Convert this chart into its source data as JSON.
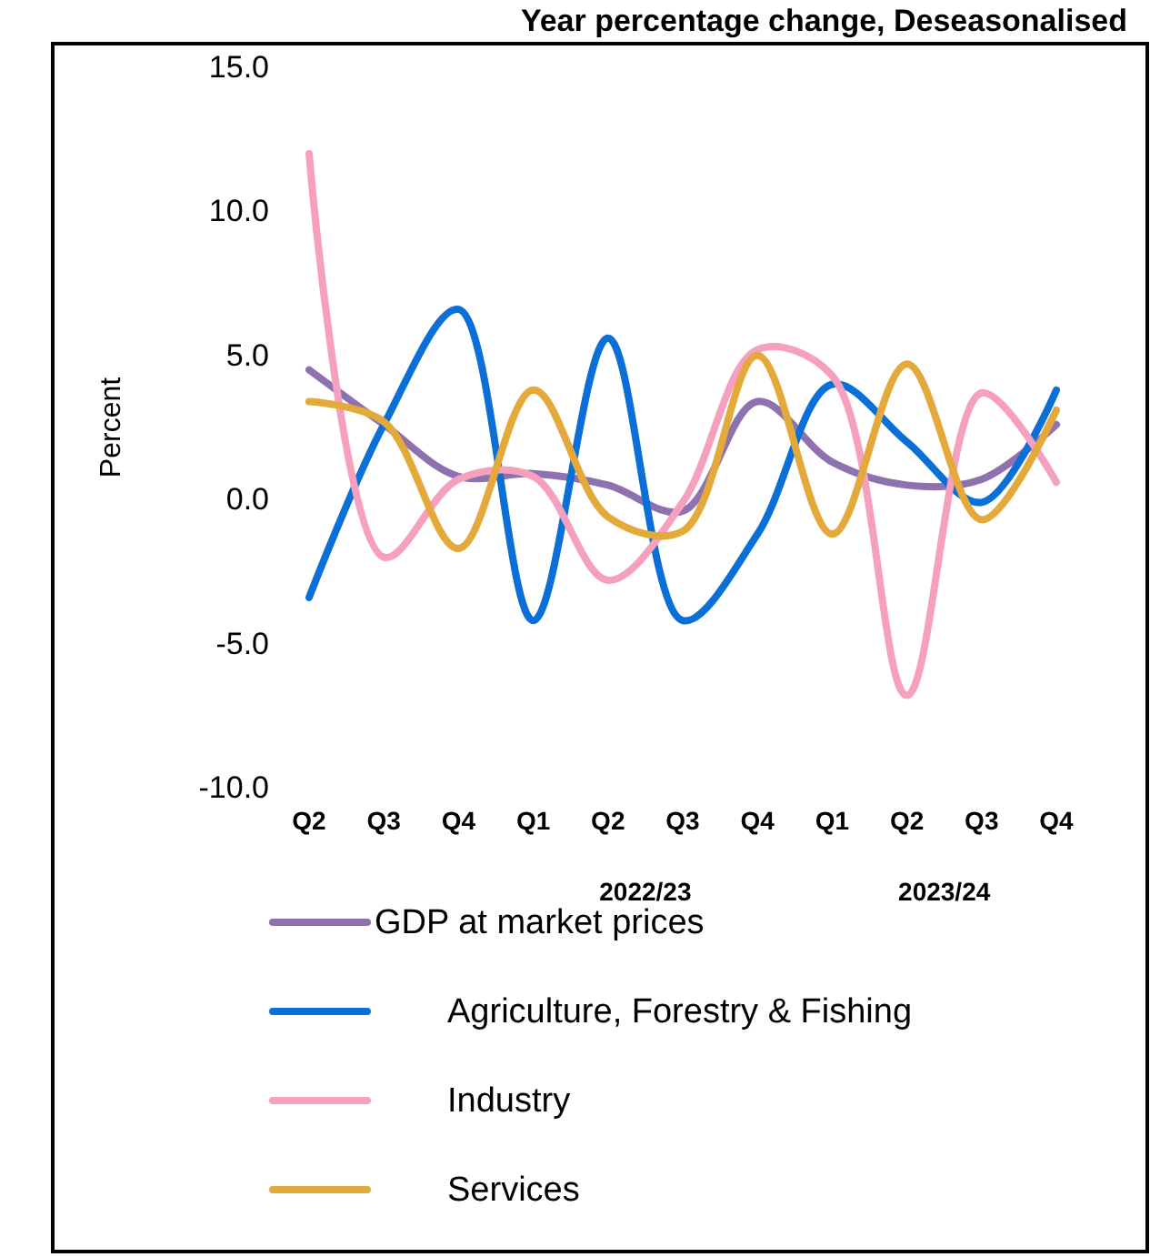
{
  "chart_data": {
    "type": "line",
    "title": "Year percentage change, Deseasonalised",
    "ylabel": "Percent",
    "categories": [
      "Q2",
      "Q3",
      "Q4",
      "Q1",
      "Q2",
      "Q3",
      "Q4",
      "Q1",
      "Q2",
      "Q3",
      "Q4"
    ],
    "annotations": [
      "2022/23",
      "2023/24"
    ],
    "ylim": [
      -10,
      15
    ],
    "yticks": [
      {
        "value": -10,
        "label": "-10.0"
      },
      {
        "value": -5,
        "label": "-5.0"
      },
      {
        "value": 0,
        "label": "0.0"
      },
      {
        "value": 5,
        "label": "5.0"
      },
      {
        "value": 10,
        "label": "10.0"
      },
      {
        "value": 15,
        "label": "15.0"
      }
    ],
    "grid": false,
    "legend": "bottom",
    "marker": "none",
    "line_style": "solid",
    "series": [
      {
        "name": "GDP at market prices",
        "color": "#8e72b0",
        "values": [
          4.5,
          2.6,
          0.8,
          0.9,
          0.5,
          -0.4,
          3.4,
          1.3,
          0.5,
          0.7,
          2.6
        ]
      },
      {
        "name": "Agriculture, Forestry & Fishing",
        "color": "#0a6fd6",
        "values": [
          -3.4,
          2.6,
          6.6,
          -4.2,
          5.6,
          -4.2,
          -1.2,
          4.0,
          2.0,
          -0.1,
          3.8
        ]
      },
      {
        "name": "Industry",
        "color": "#f4a0be",
        "values": [
          12.0,
          -2.0,
          0.7,
          0.8,
          -2.8,
          -0.1,
          5.2,
          4.3,
          -6.8,
          3.7,
          0.6
        ]
      },
      {
        "name": "Services",
        "color": "#e3a93a",
        "values": [
          3.4,
          2.7,
          -1.7,
          3.8,
          -0.6,
          -1.1,
          5.0,
          -1.2,
          4.7,
          -0.7,
          3.1
        ]
      }
    ]
  }
}
